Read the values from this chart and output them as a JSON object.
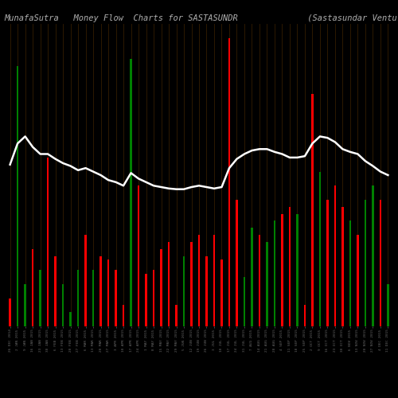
{
  "title": "MunafaSutra   Money Flow  Charts for SASTASUNDR              (Sastasundar Ventur s  Limit",
  "background_color": "#000000",
  "grid_color": "#3a2000",
  "bar_colors": [
    "red",
    "green",
    "green",
    "red",
    "green",
    "red",
    "red",
    "green",
    "green",
    "green",
    "red",
    "green",
    "red",
    "red",
    "red",
    "red",
    "green",
    "red",
    "red",
    "red",
    "red",
    "red",
    "red",
    "green",
    "red",
    "red",
    "red",
    "red",
    "red",
    "red",
    "red",
    "green",
    "green",
    "red",
    "green",
    "green",
    "red",
    "red",
    "green",
    "red",
    "red",
    "green",
    "red",
    "red",
    "red",
    "green",
    "red",
    "green",
    "green",
    "red",
    "green"
  ],
  "bar_heights": [
    40,
    370,
    60,
    110,
    80,
    240,
    100,
    60,
    20,
    80,
    130,
    80,
    100,
    95,
    80,
    30,
    380,
    200,
    75,
    80,
    110,
    120,
    30,
    100,
    120,
    130,
    100,
    130,
    95,
    410,
    180,
    70,
    140,
    130,
    120,
    150,
    160,
    170,
    160,
    30,
    330,
    220,
    180,
    200,
    170,
    150,
    130,
    180,
    200,
    180,
    60
  ],
  "line_values": [
    230,
    260,
    270,
    255,
    245,
    245,
    238,
    232,
    228,
    222,
    225,
    220,
    215,
    208,
    205,
    200,
    218,
    210,
    205,
    200,
    198,
    196,
    195,
    195,
    198,
    200,
    198,
    196,
    198,
    225,
    238,
    245,
    250,
    252,
    252,
    248,
    245,
    240,
    240,
    242,
    260,
    270,
    268,
    262,
    252,
    248,
    245,
    235,
    228,
    220,
    215
  ],
  "xtick_labels": [
    "26 DEC 2014",
    "2 JAN 2015",
    "9 JAN 2015",
    "16 JAN 2015",
    "23 JAN 2015",
    "30 JAN 2015",
    "6 FEB 2015",
    "13 FEB 2015",
    "20 FEB 2015",
    "27 FEB 2015",
    "6 MAR 2015",
    "13 MAR 2015",
    "20 MAR 2015",
    "27 MAR 2015",
    "3 APR 2015",
    "10 APR 2015",
    "17 APR 2015",
    "24 APR 2015",
    "1 MAY 2015",
    "8 MAY 2015",
    "15 MAY 2015",
    "22 MAY 2015",
    "29 MAY 2015",
    "5 JUN 2015",
    "12 JUN 2015",
    "19 JUN 2015",
    "26 JUN 2015",
    "3 JUL 2015",
    "10 JUL 2015",
    "17 JUL 2015",
    "24 JUL 2015",
    "31 JUL 2015",
    "7 AUG 2015",
    "14 AUG 2015",
    "21 AUG 2015",
    "28 AUG 2015",
    "4 SEP 2015",
    "11 SEP 2015",
    "18 SEP 2015",
    "25 SEP 2015",
    "2 OCT 2015",
    "9 OCT 2015",
    "16 OCT 2015",
    "23 OCT 2015",
    "30 OCT 2015",
    "6 NOV 2015",
    "13 NOV 2015",
    "20 NOV 2015",
    "27 NOV 2015",
    "4 DEC 2015",
    "11 DEC 2015"
  ],
  "ylim": [
    0,
    430
  ],
  "line_color": "#ffffff",
  "line_width": 1.8,
  "title_color": "#b0b0b0",
  "title_fontsize": 7.5
}
